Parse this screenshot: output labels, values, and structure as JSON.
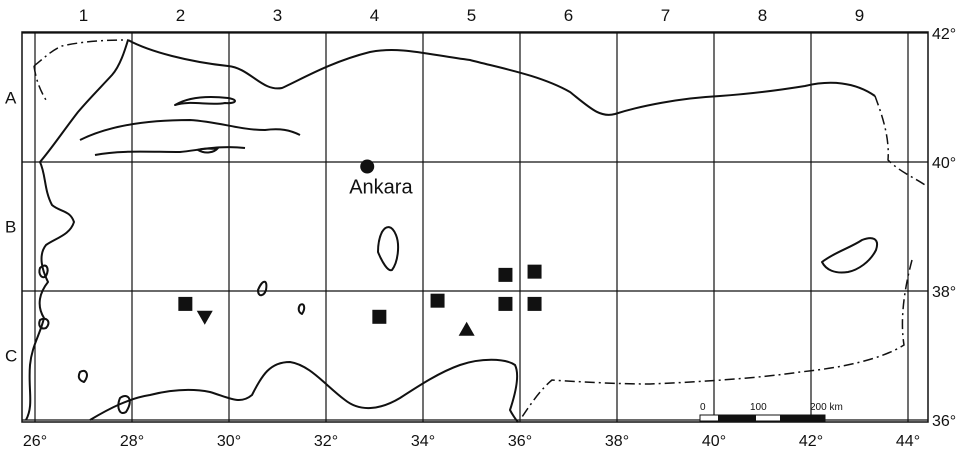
{
  "columns": [
    "1",
    "2",
    "3",
    "4",
    "5",
    "6",
    "7",
    "8",
    "9"
  ],
  "rows": [
    "A",
    "B",
    "C"
  ],
  "lon_labels": [
    "26°",
    "28°",
    "30°",
    "32°",
    "34°",
    "36°",
    "38°",
    "40°",
    "42°",
    "44°"
  ],
  "lat_labels": [
    "42°",
    "40°",
    "38°",
    "36°"
  ],
  "city": {
    "name": "Ankara",
    "lon": 32.85,
    "lat": 39.93
  },
  "scale_bar": {
    "zero": "0",
    "mid": "100",
    "end": "200 km"
  },
  "markers": [
    {
      "shape": "square",
      "lon": 29.1,
      "lat": 37.8
    },
    {
      "shape": "triangle-down",
      "lon": 29.5,
      "lat": 37.6
    },
    {
      "shape": "square",
      "lon": 33.1,
      "lat": 37.6
    },
    {
      "shape": "square",
      "lon": 34.3,
      "lat": 37.85
    },
    {
      "shape": "triangle-up",
      "lon": 34.9,
      "lat": 37.4
    },
    {
      "shape": "square",
      "lon": 35.7,
      "lat": 38.25
    },
    {
      "shape": "square",
      "lon": 35.7,
      "lat": 37.8
    },
    {
      "shape": "square",
      "lon": 36.3,
      "lat": 38.3
    },
    {
      "shape": "square",
      "lon": 36.3,
      "lat": 37.8
    }
  ],
  "colors": {
    "ink": "#111111",
    "background": "#ffffff"
  }
}
